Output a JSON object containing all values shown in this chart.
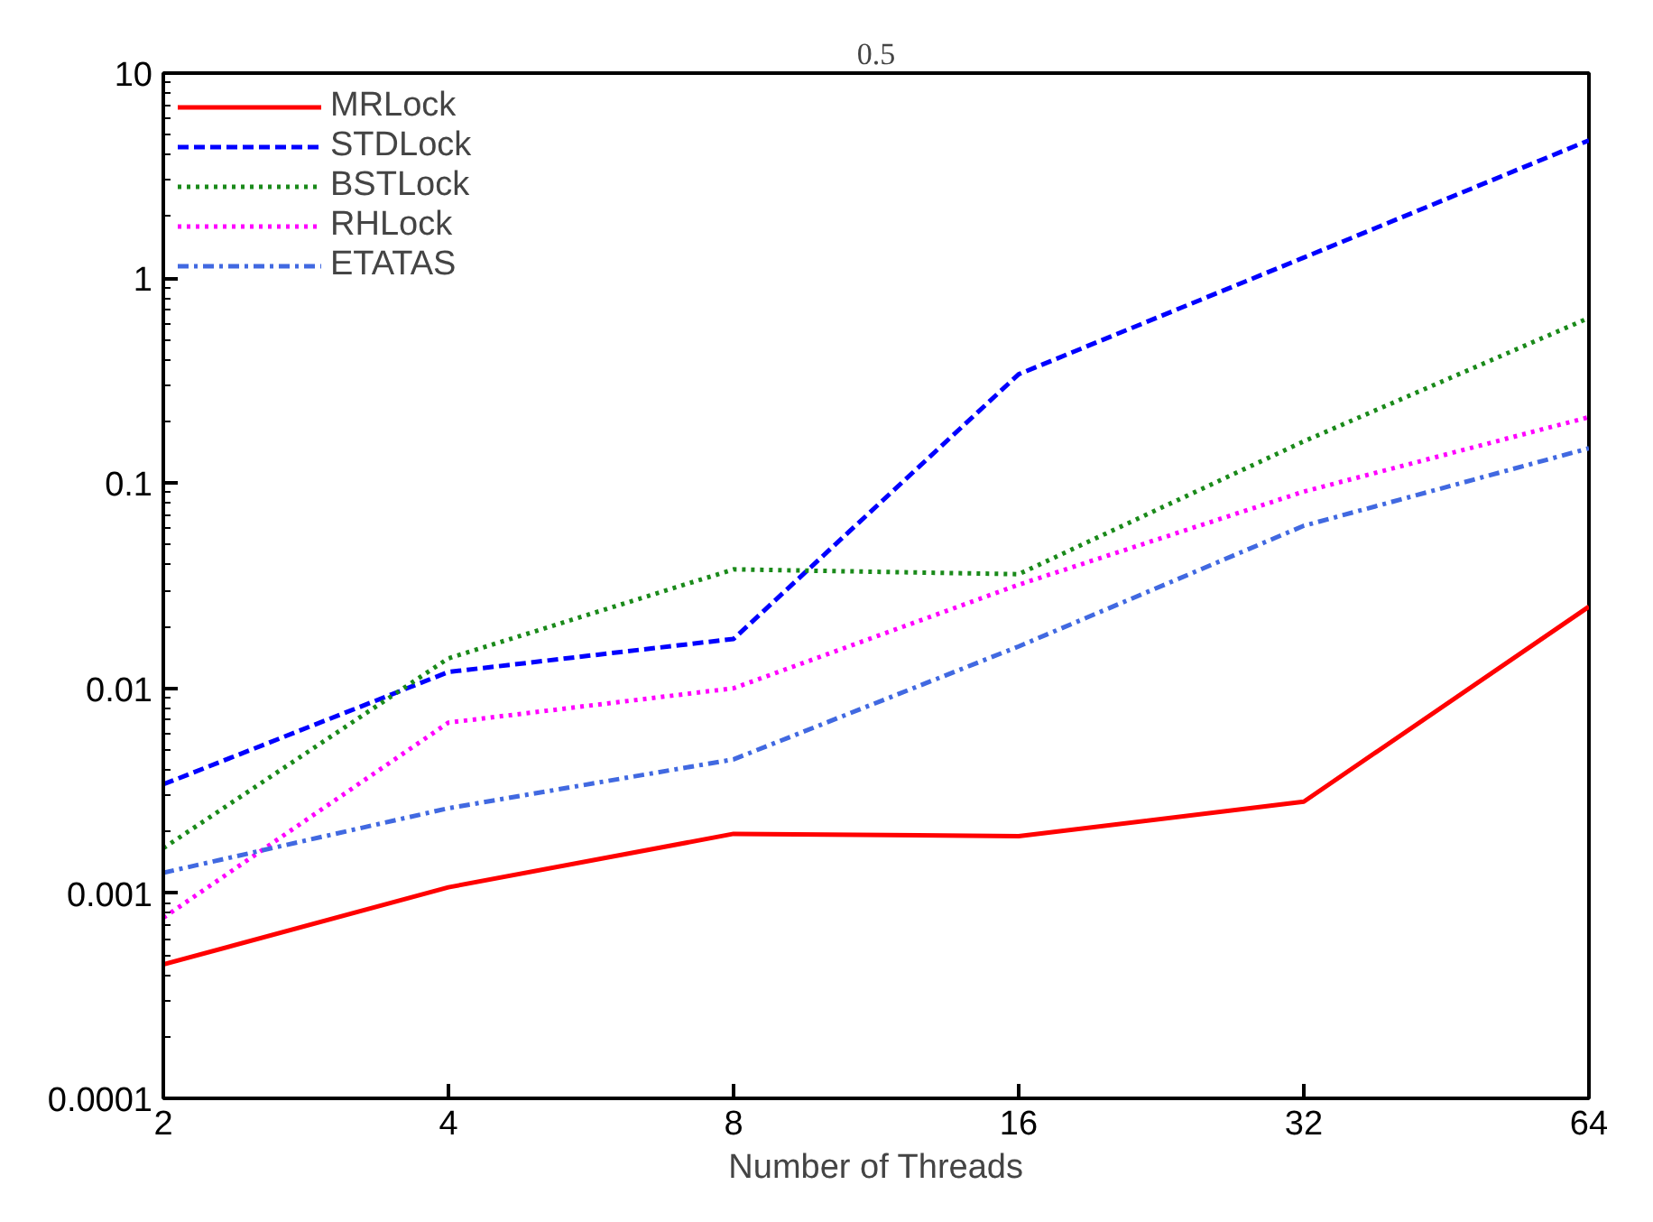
{
  "chart_data": {
    "type": "line",
    "title": "0.5",
    "xlabel": "Number of Threads",
    "x": [
      2,
      4,
      8,
      16,
      32,
      64
    ],
    "series": [
      {
        "name": "MRLock",
        "color": "#ff0000",
        "line_style": "solid",
        "values": [
          0.00045,
          0.00107,
          0.00195,
          0.0019,
          0.0028,
          0.025
        ]
      },
      {
        "name": "STDLock",
        "color": "#0000ff",
        "line_style": "dashed",
        "values": [
          0.0034,
          0.012,
          0.0174,
          0.34,
          1.26,
          4.7
        ]
      },
      {
        "name": "BSTLock",
        "color": "#1a8a1a",
        "line_style": "dotted",
        "values": [
          0.00166,
          0.014,
          0.038,
          0.036,
          0.16,
          0.64
        ]
      },
      {
        "name": "RHLock",
        "color": "#ff00ff",
        "line_style": "dotted",
        "values": [
          0.00076,
          0.0068,
          0.01,
          0.032,
          0.091,
          0.21
        ]
      },
      {
        "name": "ETATAS",
        "color": "#4169e1",
        "line_style": "dashdot",
        "values": [
          0.00126,
          0.0026,
          0.0045,
          0.016,
          0.062,
          0.148
        ]
      }
    ],
    "log": "xy",
    "xlim": [
      2,
      64
    ],
    "xticks": [
      2,
      4,
      8,
      16,
      32,
      64
    ],
    "ylim": [
      0.0001,
      10
    ],
    "yticks": [
      0.0001,
      0.001,
      0.01,
      0.1,
      1,
      10
    ],
    "grid": false,
    "legend": "top left",
    "marker": "none"
  }
}
